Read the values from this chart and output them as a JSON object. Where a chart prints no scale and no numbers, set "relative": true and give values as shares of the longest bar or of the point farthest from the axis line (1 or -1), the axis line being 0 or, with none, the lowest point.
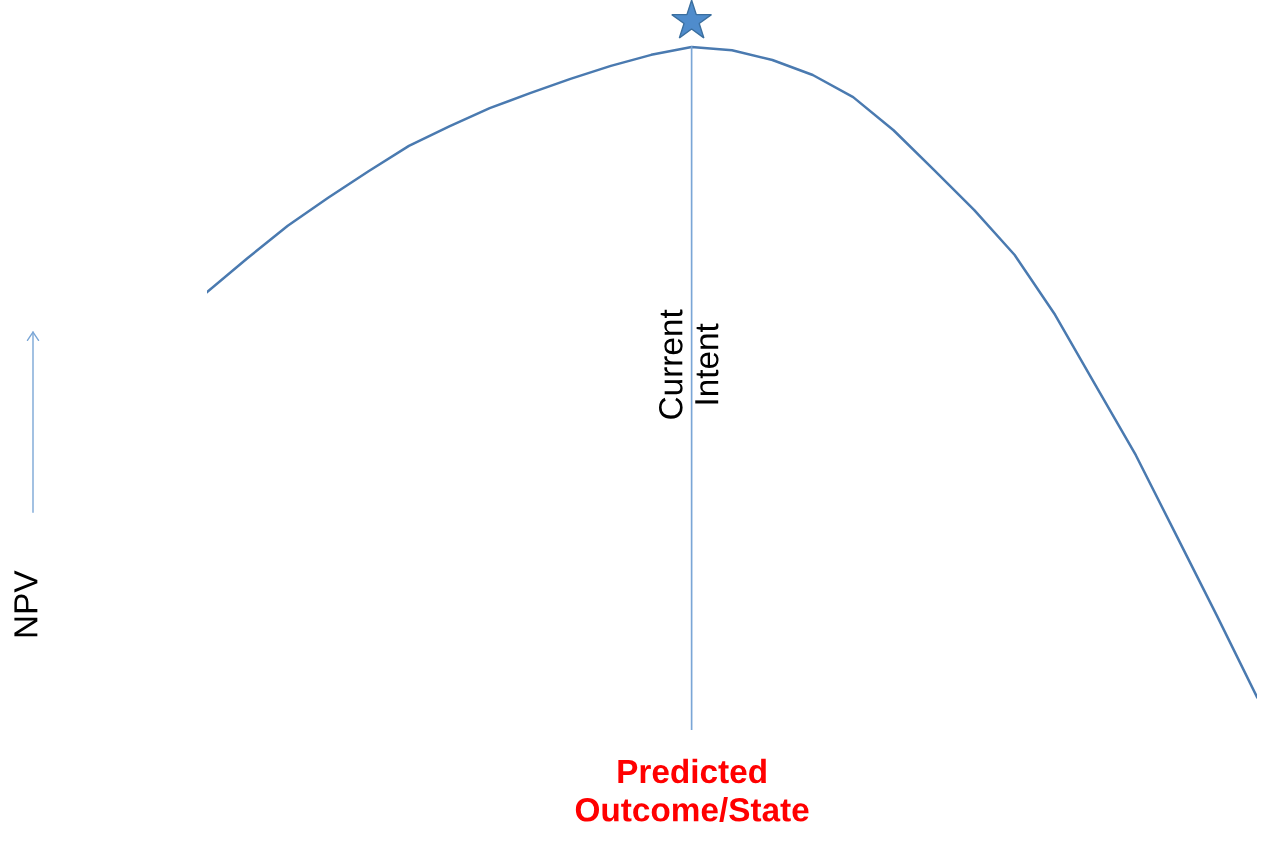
{
  "chart_data": {
    "type": "line",
    "relative": true,
    "ylabel": "NPV",
    "xlabel": "Predicted\nOutcome/State",
    "categories": [
      null,
      null,
      null,
      null,
      null,
      null,
      null,
      null,
      null,
      null,
      null,
      null,
      null,
      null,
      null,
      null,
      null,
      null,
      null,
      null,
      null,
      null,
      null,
      null,
      null,
      null,
      null
    ],
    "series": [
      {
        "color": "#4a7ab0",
        "values": [
          0.623,
          0.675,
          0.725,
          0.768,
          0.809,
          0.848,
          0.878,
          0.906,
          0.929,
          0.951,
          0.971,
          0.988,
          1.0,
          0.995,
          0.98,
          0.957,
          0.923,
          0.872,
          0.811,
          0.749,
          0.68,
          0.588,
          0.48,
          0.372,
          0.249,
          0.126,
          0
        ]
      }
    ],
    "ref_lines": [
      {
        "axis": "x",
        "value": null,
        "label": "Current\nIntent",
        "color": "#7aa6d6"
      }
    ],
    "grid": false,
    "legend": false,
    "marker": "none",
    "line_style": "solid"
  }
}
